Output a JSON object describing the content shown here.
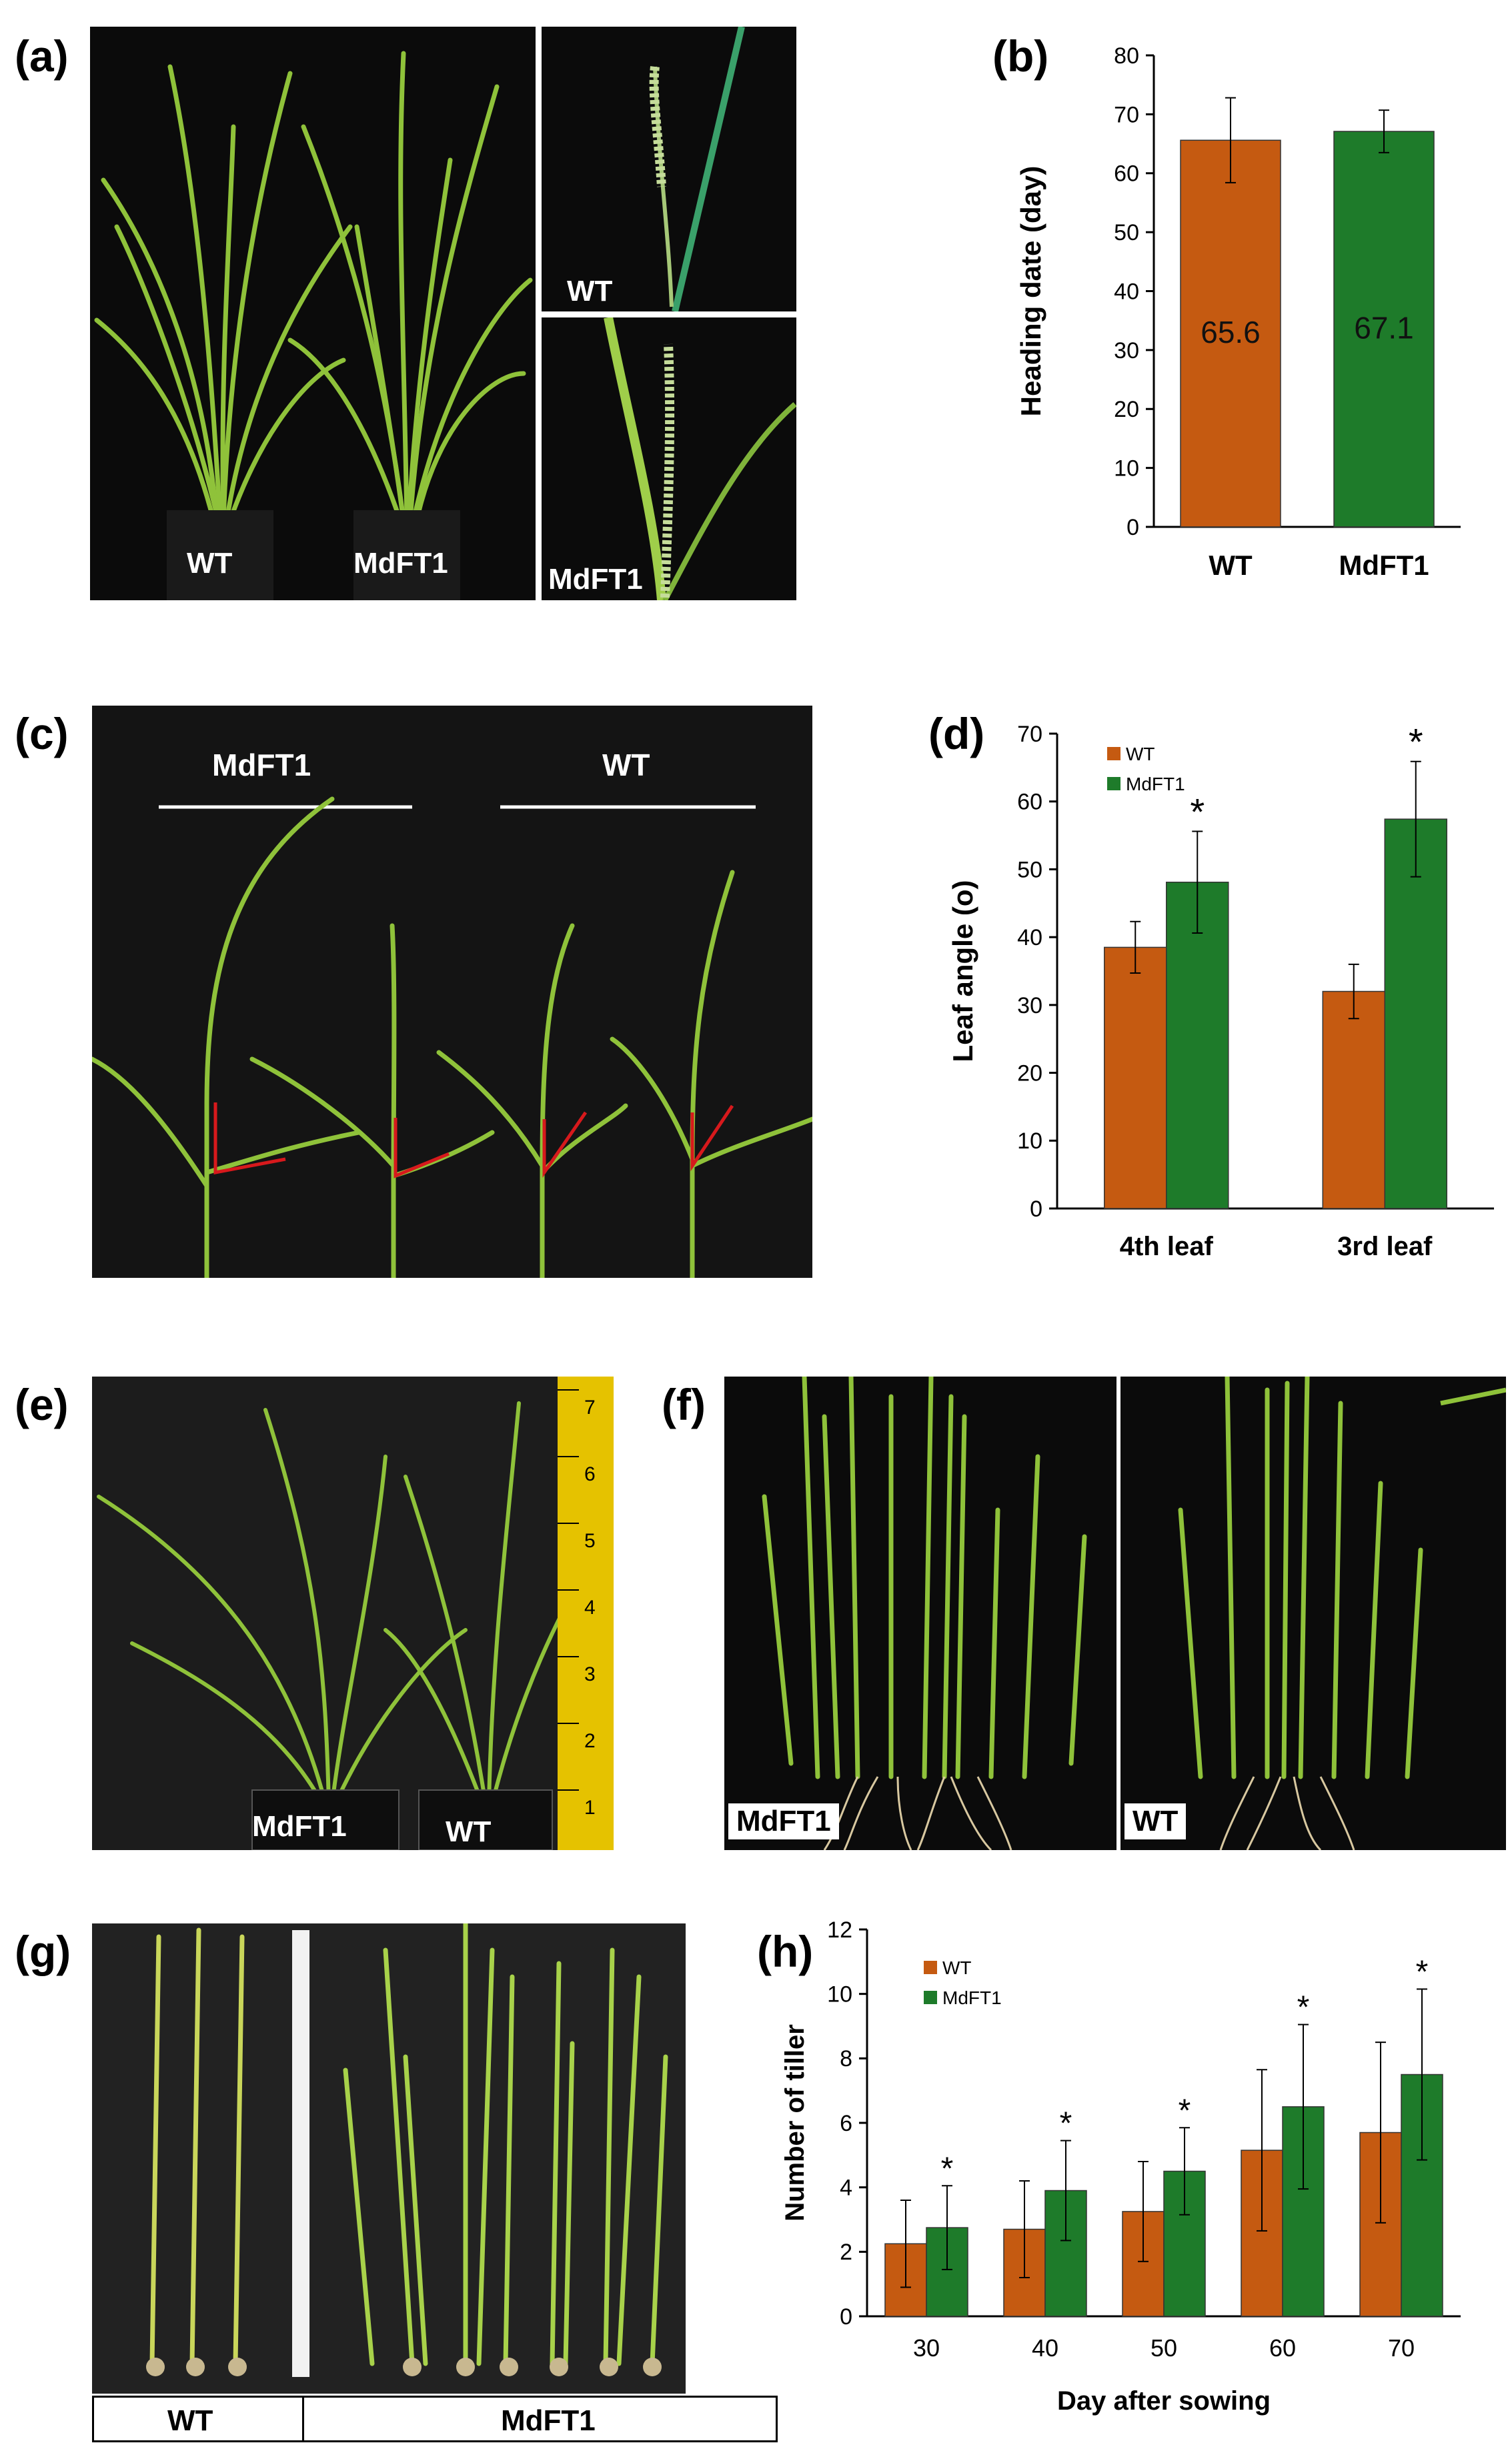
{
  "panels": {
    "a": {
      "letter": "(a)",
      "main_labels": [
        "WT",
        "MdFT1"
      ],
      "inset_labels": [
        "WT",
        "MdFT1"
      ]
    },
    "b": {
      "letter": "(b)"
    },
    "c": {
      "letter": "(c)",
      "group_labels": [
        "MdFT1",
        "WT"
      ]
    },
    "d": {
      "letter": "(d)"
    },
    "e": {
      "letter": "(e)",
      "labels": [
        "MdFT1",
        "WT"
      ],
      "ruler_marks": [
        "1",
        "2",
        "3",
        "4",
        "5",
        "6",
        "7"
      ]
    },
    "f": {
      "letter": "(f)",
      "labels": [
        "MdFT1",
        "WT"
      ]
    },
    "g": {
      "letter": "(g)",
      "labels": [
        "WT",
        "MdFT1"
      ]
    },
    "h": {
      "letter": "(h)"
    }
  },
  "colors": {
    "wt": "#c55a11",
    "mdft1": "#1e7b2a",
    "photo_bg": "#0b0b0b",
    "plant": "#8fc23a",
    "angle_line": "#d7191c"
  },
  "chart_data": [
    {
      "id": "b",
      "type": "bar",
      "categories": [
        "WT",
        "MdFT1"
      ],
      "series": [
        {
          "values": [
            65.6,
            67.1
          ],
          "errors": [
            7.2,
            3.6
          ],
          "data_labels": [
            "65.6",
            "67.1"
          ]
        }
      ],
      "ylabel": "Heading date (day)",
      "xlabel": "",
      "ylim": [
        0,
        80
      ],
      "yticks": [
        "0",
        "10",
        "20",
        "30",
        "40",
        "50",
        "60",
        "70",
        "80"
      ],
      "grid": false,
      "legend": null
    },
    {
      "id": "d",
      "type": "bar",
      "categories": [
        "4th leaf",
        "3rd leaf"
      ],
      "series": [
        {
          "name": "WT",
          "values": [
            38.5,
            32.0
          ],
          "errors": [
            3.8,
            4.0
          ]
        },
        {
          "name": "MdFT1",
          "values": [
            48.1,
            57.4
          ],
          "errors": [
            7.5,
            8.5
          ]
        }
      ],
      "significance": [
        "*",
        "*"
      ],
      "ylabel": "Leaf angle (o)",
      "xlabel": "",
      "ylim": [
        0,
        70
      ],
      "yticks": [
        "0",
        "10",
        "20",
        "30",
        "40",
        "50",
        "60",
        "70"
      ],
      "grid": false,
      "legend": "top-left"
    },
    {
      "id": "h",
      "type": "bar",
      "categories": [
        "30",
        "40",
        "50",
        "60",
        "70"
      ],
      "series": [
        {
          "name": "WT",
          "values": [
            2.25,
            2.7,
            3.25,
            5.15,
            5.7
          ],
          "errors": [
            1.35,
            1.5,
            1.55,
            2.5,
            2.8
          ]
        },
        {
          "name": "MdFT1",
          "values": [
            2.75,
            3.9,
            4.5,
            6.5,
            7.5
          ],
          "errors": [
            1.3,
            1.55,
            1.35,
            2.55,
            2.65
          ]
        }
      ],
      "significance": [
        "*",
        "*",
        "*",
        "*",
        "*"
      ],
      "ylabel": "Number of tiller",
      "xlabel": "Day after sowing",
      "ylim": [
        0,
        12
      ],
      "yticks": [
        "0",
        "2",
        "4",
        "6",
        "8",
        "10",
        "12"
      ],
      "grid": false,
      "legend": "top-left"
    }
  ]
}
